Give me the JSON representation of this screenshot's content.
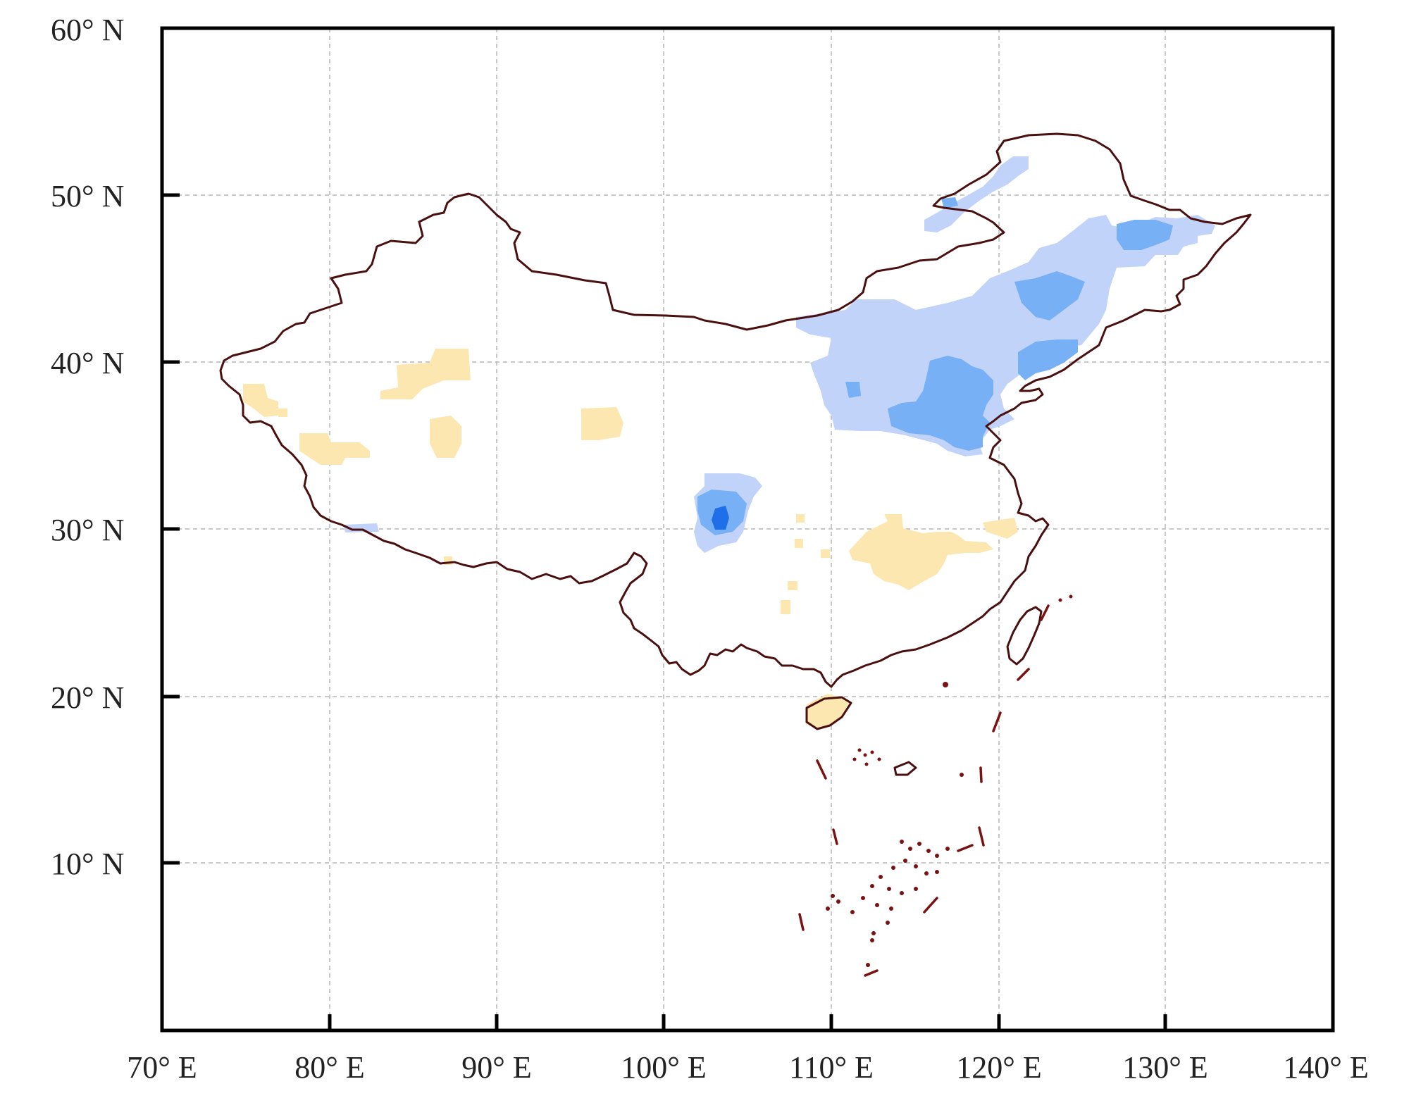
{
  "map": {
    "lat_labels": [
      "60° N",
      "50° N",
      "40° N",
      "30° N",
      "20° N",
      "10° N"
    ],
    "lon_labels": [
      "70° E",
      "80° E",
      "90° E",
      "100° E",
      "110° E",
      "120° E",
      "130° E",
      "140° E"
    ],
    "lat_range": [
      0,
      60
    ],
    "lon_range": [
      70,
      140
    ],
    "gridlines": true,
    "colors": {
      "light_blue": "#c2d3fa",
      "mid_blue": "#78b0f5",
      "dark_blue": "#1f6fe8",
      "tan": "#fde7b0",
      "border": "#4a1010"
    }
  }
}
